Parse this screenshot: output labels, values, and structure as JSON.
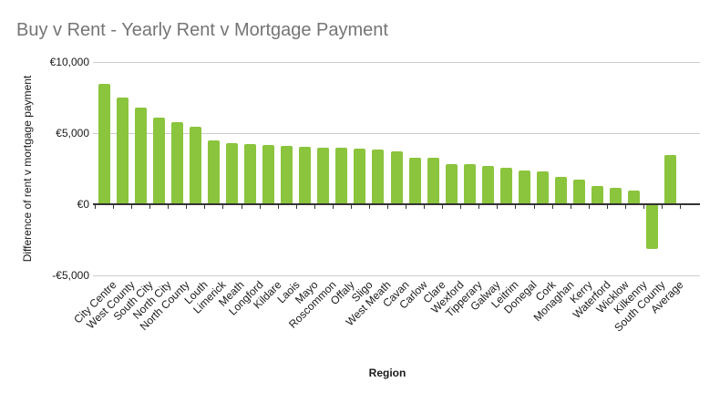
{
  "chart_data": {
    "type": "bar",
    "title": "Buy v Rent - Yearly Rent v Mortgage Payment",
    "xlabel": "Region",
    "ylabel": "Difference of rent v mortgage payment",
    "ylim": [
      -5000,
      10000
    ],
    "grid": true,
    "legend": "none",
    "ytick_labels": [
      "€10,000",
      "€5,000",
      "€0",
      "-€5,000"
    ],
    "ytick_values": [
      10000,
      5000,
      0,
      -5000
    ],
    "categories": [
      "City Centre",
      "West County",
      "South City",
      "North City",
      "North County",
      "Louth",
      "Limerick",
      "Meath",
      "Longford",
      "Kildare",
      "Laois",
      "Mayo",
      "Roscommon",
      "Offaly",
      "Sligo",
      "West Meath",
      "Cavan",
      "Carlow",
      "Clare",
      "Wexford",
      "Tipperary",
      "Galway",
      "Leitrim",
      "Donegal",
      "Cork",
      "Monaghan",
      "Kerry",
      "Waterford",
      "Wicklow",
      "Kilkenny",
      "South County",
      "Average"
    ],
    "values": [
      8450,
      7500,
      6800,
      6100,
      5800,
      5450,
      4500,
      4300,
      4200,
      4150,
      4100,
      4050,
      4000,
      3950,
      3900,
      3850,
      3700,
      3300,
      3250,
      2850,
      2800,
      2700,
      2550,
      2350,
      2300,
      1900,
      1750,
      1270,
      1150,
      950,
      -3050,
      3450
    ]
  },
  "colors": {
    "bar": "#8BC43D",
    "title": "#757575",
    "gridline": "#CCCCCC",
    "axis_line": "#333333",
    "label": "#1A1A1A"
  }
}
